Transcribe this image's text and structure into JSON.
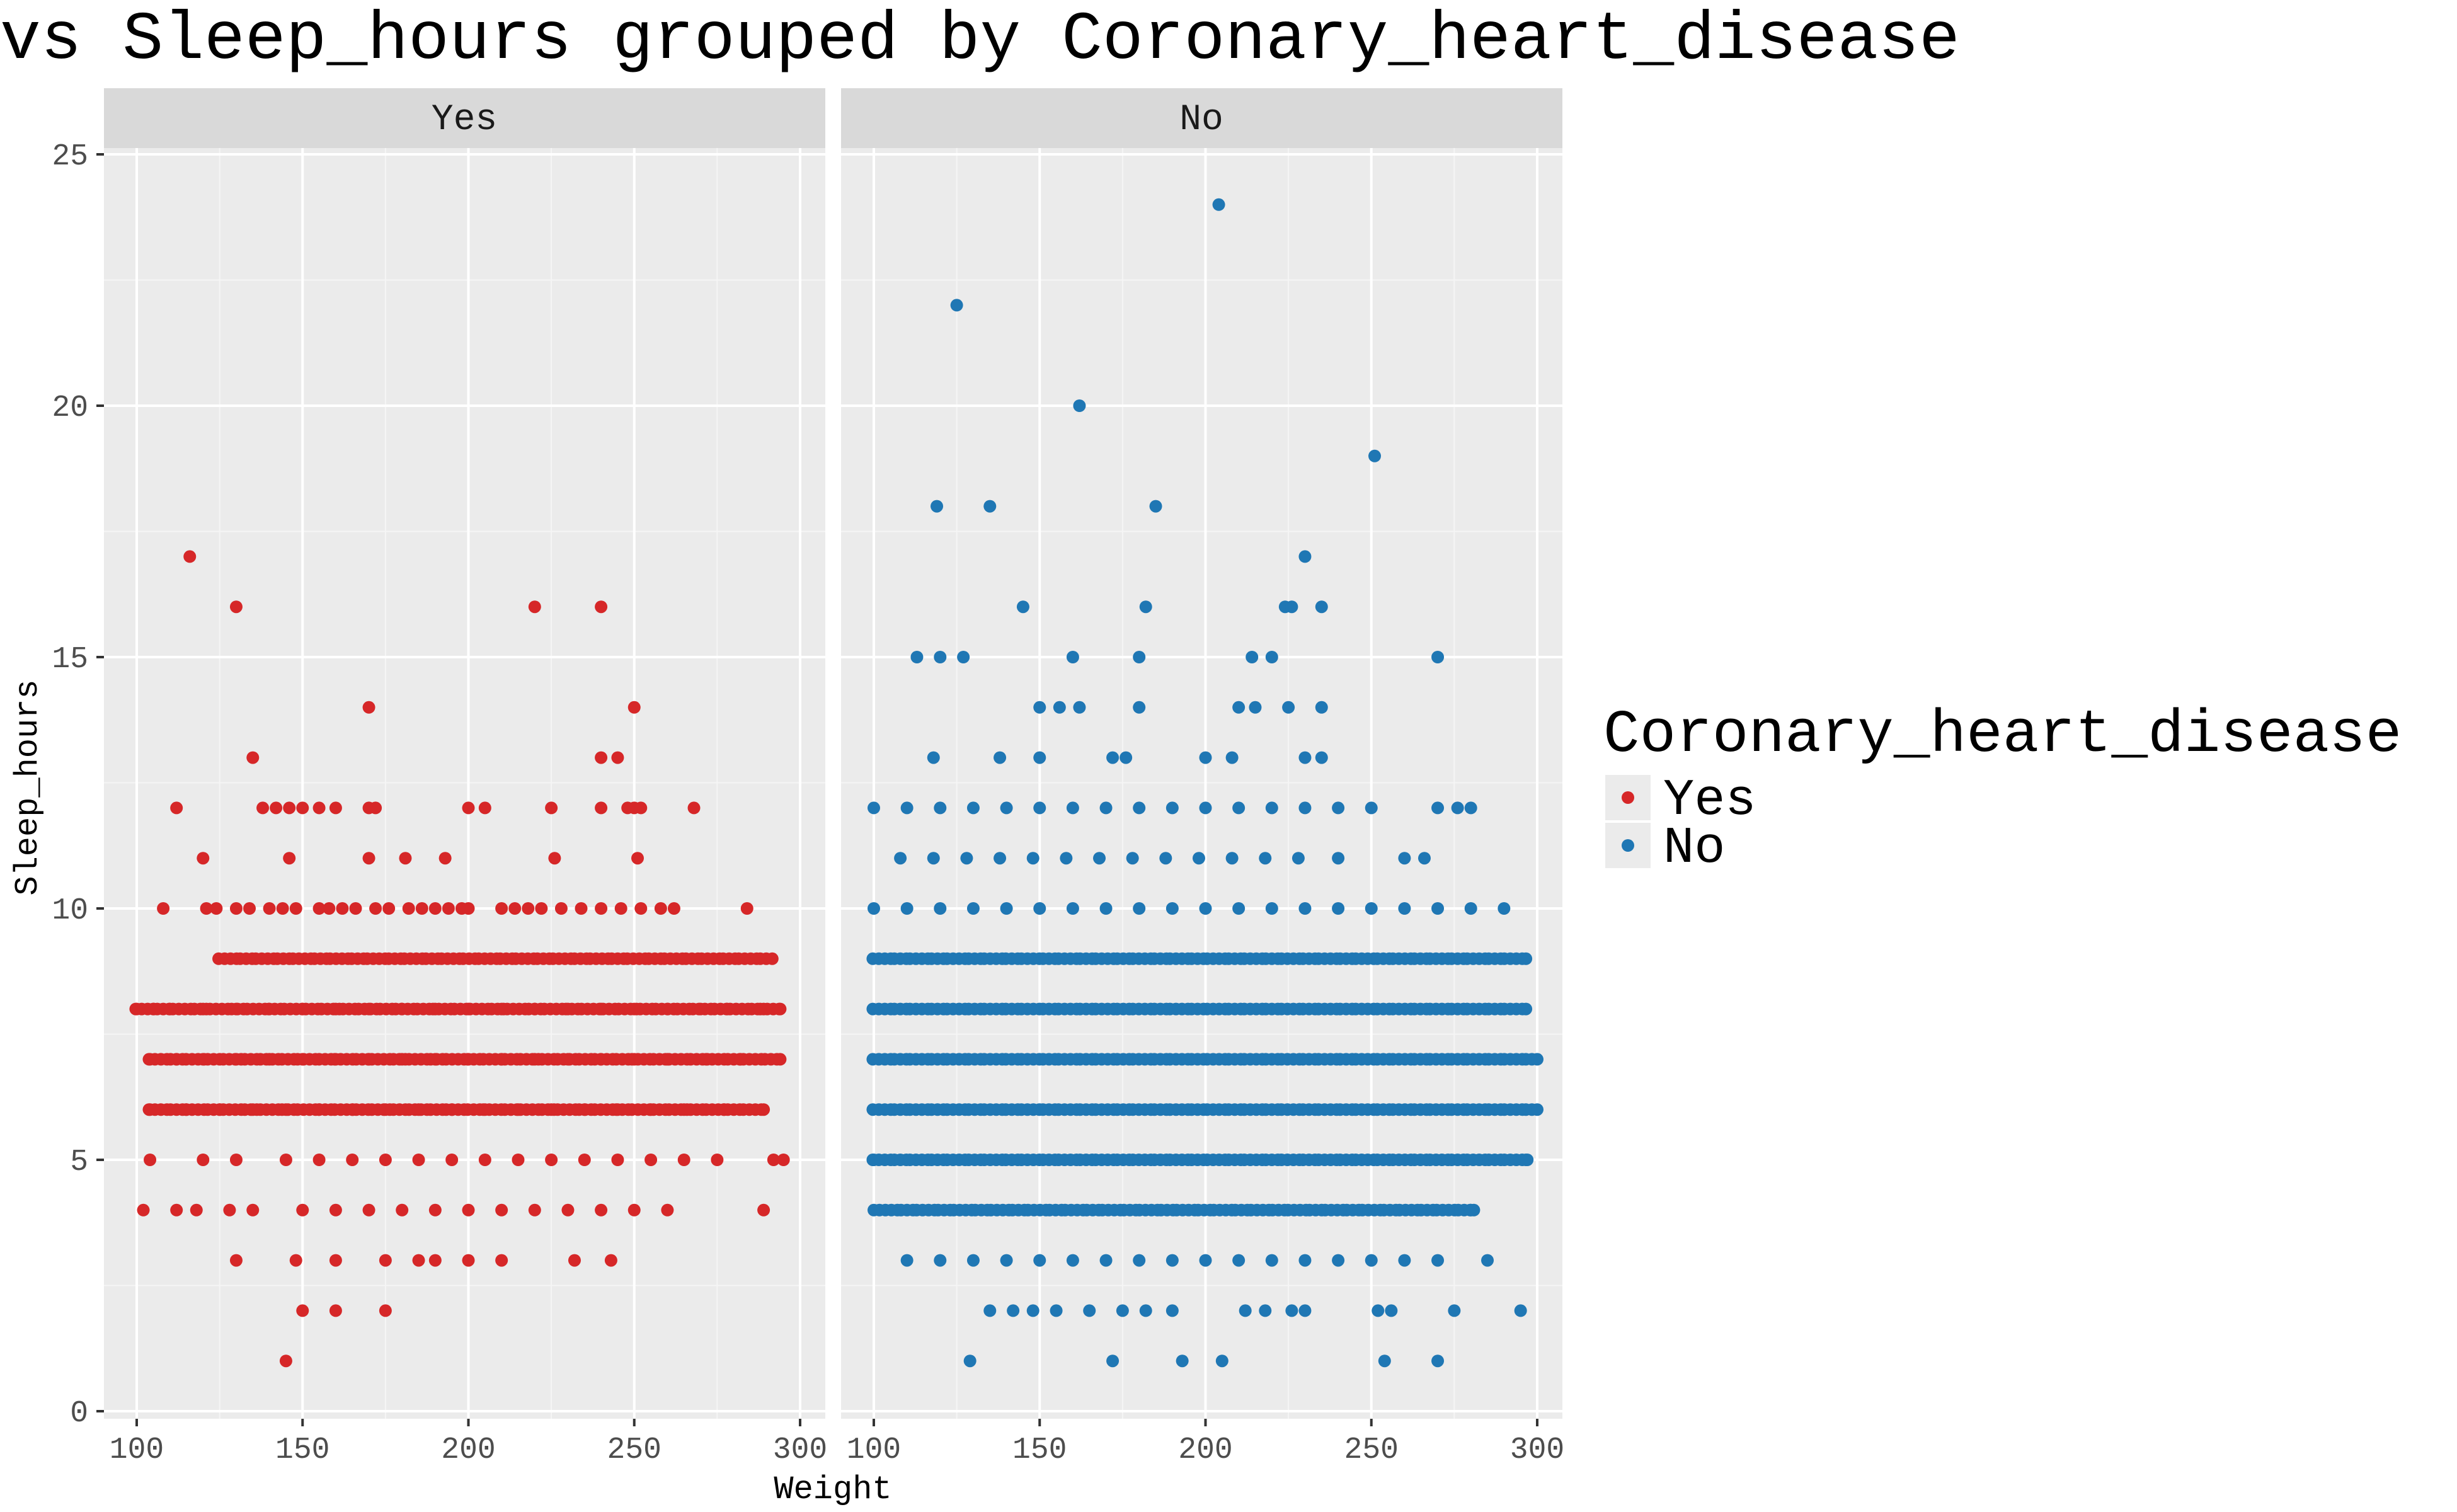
{
  "chart_data": {
    "type": "scatter",
    "title": "vs Sleep_hours grouped by Coronary_heart_disease",
    "xlabel": "Weight",
    "ylabel": "Sleep_hours",
    "xlim": [
      95,
      300
    ],
    "ylim": [
      0,
      25
    ],
    "x_ticks": [
      "100",
      "150",
      "200",
      "250",
      "300"
    ],
    "y_ticks": [
      "0",
      "5",
      "10",
      "15",
      "20",
      "25"
    ],
    "facets": [
      "Yes",
      "No"
    ],
    "grid": true,
    "legend": {
      "title": "Coronary_heart_disease",
      "placement": "right",
      "entries": [
        "Yes",
        "No"
      ]
    },
    "series": [
      {
        "name": "Yes",
        "color": "#d62728",
        "points": [
          [
            116,
            17
          ],
          [
            130,
            16
          ],
          [
            220,
            16
          ],
          [
            240,
            16
          ],
          [
            170,
            14
          ],
          [
            250,
            14
          ],
          [
            135,
            13
          ],
          [
            240,
            13
          ],
          [
            245,
            13
          ],
          [
            112,
            12
          ],
          [
            138,
            12
          ],
          [
            142,
            12
          ],
          [
            146,
            12
          ],
          [
            150,
            12
          ],
          [
            155,
            12
          ],
          [
            160,
            12
          ],
          [
            170,
            12
          ],
          [
            172,
            12
          ],
          [
            200,
            12
          ],
          [
            205,
            12
          ],
          [
            225,
            12
          ],
          [
            240,
            12
          ],
          [
            248,
            12
          ],
          [
            250,
            12
          ],
          [
            252,
            12
          ],
          [
            268,
            12
          ],
          [
            120,
            11
          ],
          [
            146,
            11
          ],
          [
            170,
            11
          ],
          [
            181,
            11
          ],
          [
            193,
            11
          ],
          [
            226,
            11
          ],
          [
            251,
            11
          ],
          [
            108,
            10
          ],
          [
            121,
            10
          ],
          [
            124,
            10
          ],
          [
            130,
            10
          ],
          [
            134,
            10
          ],
          [
            140,
            10
          ],
          [
            144,
            10
          ],
          [
            148,
            10
          ],
          [
            155,
            10
          ],
          [
            158,
            10
          ],
          [
            162,
            10
          ],
          [
            166,
            10
          ],
          [
            172,
            10
          ],
          [
            176,
            10
          ],
          [
            182,
            10
          ],
          [
            186,
            10
          ],
          [
            190,
            10
          ],
          [
            194,
            10
          ],
          [
            198,
            10
          ],
          [
            200,
            10
          ],
          [
            210,
            10
          ],
          [
            214,
            10
          ],
          [
            218,
            10
          ],
          [
            222,
            10
          ],
          [
            228,
            10
          ],
          [
            234,
            10
          ],
          [
            240,
            10
          ],
          [
            246,
            10
          ],
          [
            252,
            10
          ],
          [
            258,
            10
          ],
          [
            262,
            10
          ],
          [
            284,
            10
          ],
          [
            100,
            8
          ],
          [
            105,
            8
          ],
          [
            110,
            8
          ],
          [
            120,
            8
          ],
          [
            130,
            8
          ],
          [
            140,
            8
          ],
          [
            150,
            8
          ],
          [
            160,
            8
          ],
          [
            170,
            8
          ],
          [
            180,
            8
          ],
          [
            190,
            8
          ],
          [
            200,
            8
          ],
          [
            210,
            8
          ],
          [
            220,
            8
          ],
          [
            230,
            8
          ],
          [
            240,
            8
          ],
          [
            250,
            8
          ],
          [
            260,
            8
          ],
          [
            270,
            8
          ],
          [
            278,
            8
          ],
          [
            288,
            8
          ],
          [
            294,
            8
          ],
          [
            104,
            7
          ],
          [
            112,
            7
          ],
          [
            120,
            7
          ],
          [
            130,
            7
          ],
          [
            140,
            7
          ],
          [
            150,
            7
          ],
          [
            160,
            7
          ],
          [
            170,
            7
          ],
          [
            180,
            7
          ],
          [
            190,
            7
          ],
          [
            200,
            7
          ],
          [
            210,
            7
          ],
          [
            220,
            7
          ],
          [
            230,
            7
          ],
          [
            240,
            7
          ],
          [
            250,
            7
          ],
          [
            260,
            7
          ],
          [
            272,
            7
          ],
          [
            282,
            7
          ],
          [
            294,
            7
          ],
          [
            104,
            6
          ],
          [
            115,
            6
          ],
          [
            125,
            6
          ],
          [
            135,
            6
          ],
          [
            145,
            6
          ],
          [
            155,
            6
          ],
          [
            165,
            6
          ],
          [
            175,
            6
          ],
          [
            185,
            6
          ],
          [
            195,
            6
          ],
          [
            205,
            6
          ],
          [
            215,
            6
          ],
          [
            225,
            6
          ],
          [
            235,
            6
          ],
          [
            245,
            6
          ],
          [
            255,
            6
          ],
          [
            265,
            6
          ],
          [
            277,
            6
          ],
          [
            289,
            6
          ],
          [
            104,
            5
          ],
          [
            120,
            5
          ],
          [
            130,
            5
          ],
          [
            145,
            5
          ],
          [
            155,
            5
          ],
          [
            165,
            5
          ],
          [
            175,
            5
          ],
          [
            185,
            5
          ],
          [
            195,
            5
          ],
          [
            205,
            5
          ],
          [
            215,
            5
          ],
          [
            225,
            5
          ],
          [
            235,
            5
          ],
          [
            245,
            5
          ],
          [
            255,
            5
          ],
          [
            265,
            5
          ],
          [
            275,
            5
          ],
          [
            292,
            5
          ],
          [
            295,
            5
          ],
          [
            102,
            4
          ],
          [
            112,
            4
          ],
          [
            118,
            4
          ],
          [
            128,
            4
          ],
          [
            135,
            4
          ],
          [
            150,
            4
          ],
          [
            160,
            4
          ],
          [
            170,
            4
          ],
          [
            180,
            4
          ],
          [
            190,
            4
          ],
          [
            200,
            4
          ],
          [
            210,
            4
          ],
          [
            220,
            4
          ],
          [
            230,
            4
          ],
          [
            240,
            4
          ],
          [
            250,
            4
          ],
          [
            260,
            4
          ],
          [
            289,
            4
          ],
          [
            130,
            3
          ],
          [
            148,
            3
          ],
          [
            160,
            3
          ],
          [
            175,
            3
          ],
          [
            185,
            3
          ],
          [
            190,
            3
          ],
          [
            200,
            3
          ],
          [
            210,
            3
          ],
          [
            232,
            3
          ],
          [
            243,
            3
          ],
          [
            150,
            2
          ],
          [
            160,
            2
          ],
          [
            175,
            2
          ],
          [
            145,
            1
          ]
        ],
        "rows": [
          {
            "y": 9,
            "x_min": 125,
            "x_max": 292
          },
          {
            "y": 8,
            "x_min": 100,
            "x_max": 294
          },
          {
            "y": 7,
            "x_min": 104,
            "x_max": 294
          },
          {
            "y": 6,
            "x_min": 104,
            "x_max": 289
          }
        ]
      },
      {
        "name": "No",
        "color": "#1f77b4",
        "points": [
          [
            204,
            24
          ],
          [
            125,
            22
          ],
          [
            162,
            20
          ],
          [
            251,
            19
          ],
          [
            119,
            18
          ],
          [
            135,
            18
          ],
          [
            185,
            18
          ],
          [
            230,
            17
          ],
          [
            145,
            16
          ],
          [
            182,
            16
          ],
          [
            224,
            16
          ],
          [
            226,
            16
          ],
          [
            235,
            16
          ],
          [
            113,
            15
          ],
          [
            120,
            15
          ],
          [
            127,
            15
          ],
          [
            160,
            15
          ],
          [
            180,
            15
          ],
          [
            214,
            15
          ],
          [
            220,
            15
          ],
          [
            270,
            15
          ],
          [
            150,
            14
          ],
          [
            156,
            14
          ],
          [
            162,
            14
          ],
          [
            180,
            14
          ],
          [
            210,
            14
          ],
          [
            215,
            14
          ],
          [
            225,
            14
          ],
          [
            235,
            14
          ],
          [
            118,
            13
          ],
          [
            138,
            13
          ],
          [
            150,
            13
          ],
          [
            172,
            13
          ],
          [
            176,
            13
          ],
          [
            200,
            13
          ],
          [
            208,
            13
          ],
          [
            230,
            13
          ],
          [
            235,
            13
          ],
          [
            100,
            12
          ],
          [
            110,
            12
          ],
          [
            120,
            12
          ],
          [
            130,
            12
          ],
          [
            140,
            12
          ],
          [
            150,
            12
          ],
          [
            160,
            12
          ],
          [
            170,
            12
          ],
          [
            180,
            12
          ],
          [
            190,
            12
          ],
          [
            200,
            12
          ],
          [
            210,
            12
          ],
          [
            220,
            12
          ],
          [
            230,
            12
          ],
          [
            240,
            12
          ],
          [
            250,
            12
          ],
          [
            270,
            12
          ],
          [
            276,
            12
          ],
          [
            280,
            12
          ],
          [
            108,
            11
          ],
          [
            118,
            11
          ],
          [
            128,
            11
          ],
          [
            138,
            11
          ],
          [
            148,
            11
          ],
          [
            158,
            11
          ],
          [
            168,
            11
          ],
          [
            178,
            11
          ],
          [
            188,
            11
          ],
          [
            198,
            11
          ],
          [
            208,
            11
          ],
          [
            218,
            11
          ],
          [
            228,
            11
          ],
          [
            240,
            11
          ],
          [
            260,
            11
          ],
          [
            266,
            11
          ],
          [
            100,
            10
          ],
          [
            110,
            10
          ],
          [
            120,
            10
          ],
          [
            130,
            10
          ],
          [
            140,
            10
          ],
          [
            150,
            10
          ],
          [
            160,
            10
          ],
          [
            170,
            10
          ],
          [
            180,
            10
          ],
          [
            190,
            10
          ],
          [
            200,
            10
          ],
          [
            210,
            10
          ],
          [
            220,
            10
          ],
          [
            230,
            10
          ],
          [
            240,
            10
          ],
          [
            250,
            10
          ],
          [
            260,
            10
          ],
          [
            270,
            10
          ],
          [
            280,
            10
          ],
          [
            290,
            10
          ],
          [
            100,
            5
          ],
          [
            297,
            5
          ],
          [
            100,
            4
          ],
          [
            280,
            4
          ],
          [
            110,
            3
          ],
          [
            120,
            3
          ],
          [
            130,
            3
          ],
          [
            140,
            3
          ],
          [
            150,
            3
          ],
          [
            160,
            3
          ],
          [
            170,
            3
          ],
          [
            180,
            3
          ],
          [
            190,
            3
          ],
          [
            200,
            3
          ],
          [
            210,
            3
          ],
          [
            220,
            3
          ],
          [
            230,
            3
          ],
          [
            240,
            3
          ],
          [
            250,
            3
          ],
          [
            260,
            3
          ],
          [
            270,
            3
          ],
          [
            285,
            3
          ],
          [
            135,
            2
          ],
          [
            142,
            2
          ],
          [
            148,
            2
          ],
          [
            155,
            2
          ],
          [
            165,
            2
          ],
          [
            175,
            2
          ],
          [
            182,
            2
          ],
          [
            190,
            2
          ],
          [
            212,
            2
          ],
          [
            218,
            2
          ],
          [
            226,
            2
          ],
          [
            230,
            2
          ],
          [
            252,
            2
          ],
          [
            256,
            2
          ],
          [
            275,
            2
          ],
          [
            295,
            2
          ],
          [
            129,
            1
          ],
          [
            172,
            1
          ],
          [
            193,
            1
          ],
          [
            205,
            1
          ],
          [
            254,
            1
          ],
          [
            270,
            1
          ]
        ],
        "rows": [
          {
            "y": 9,
            "x_min": 100,
            "x_max": 297
          },
          {
            "y": 8,
            "x_min": 100,
            "x_max": 297
          },
          {
            "y": 7,
            "x_min": 100,
            "x_max": 300
          },
          {
            "y": 6,
            "x_min": 100,
            "x_max": 300
          },
          {
            "y": 5,
            "x_min": 100,
            "x_max": 297
          },
          {
            "y": 4,
            "x_min": 102,
            "x_max": 282
          }
        ]
      }
    ]
  }
}
